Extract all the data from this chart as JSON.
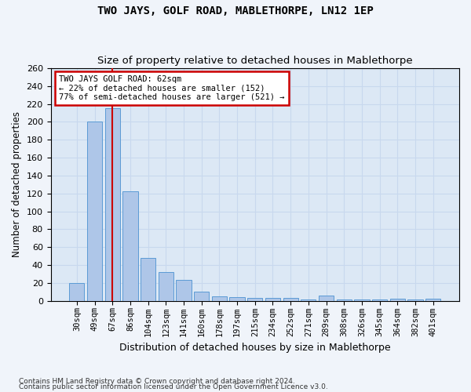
{
  "title": "TWO JAYS, GOLF ROAD, MABLETHORPE, LN12 1EP",
  "subtitle": "Size of property relative to detached houses in Mablethorpe",
  "xlabel": "Distribution of detached houses by size in Mablethorpe",
  "ylabel": "Number of detached properties",
  "categories": [
    "30sqm",
    "49sqm",
    "67sqm",
    "86sqm",
    "104sqm",
    "123sqm",
    "141sqm",
    "160sqm",
    "178sqm",
    "197sqm",
    "215sqm",
    "234sqm",
    "252sqm",
    "271sqm",
    "289sqm",
    "308sqm",
    "326sqm",
    "345sqm",
    "364sqm",
    "382sqm",
    "401sqm"
  ],
  "values": [
    20,
    200,
    215,
    122,
    48,
    32,
    23,
    10,
    5,
    4,
    3,
    3,
    3,
    1,
    6,
    1,
    1,
    1,
    2,
    1,
    2
  ],
  "bar_color": "#aec6e8",
  "bar_edge_color": "#5b9bd5",
  "fig_bg_color": "#f0f4fa",
  "ax_bg_color": "#dce8f5",
  "grid_color": "#c8d8ee",
  "red_line_x": 2,
  "annotation_line1": "TWO JAYS GOLF ROAD: 62sqm",
  "annotation_line2": "← 22% of detached houses are smaller (152)",
  "annotation_line3": "77% of semi-detached houses are larger (521) →",
  "annotation_box_facecolor": "#ffffff",
  "annotation_box_edgecolor": "#cc0000",
  "ylim": [
    0,
    260
  ],
  "yticks": [
    0,
    20,
    40,
    60,
    80,
    100,
    120,
    140,
    160,
    180,
    200,
    220,
    240,
    260
  ],
  "footnote1": "Contains HM Land Registry data © Crown copyright and database right 2024.",
  "footnote2": "Contains public sector information licensed under the Open Government Licence v3.0."
}
